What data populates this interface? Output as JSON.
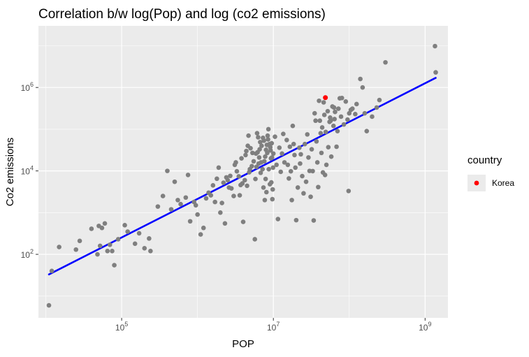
{
  "chart_data": {
    "type": "scatter",
    "title": "Correlation b/w log(Pop) and log (co2 emissions)",
    "xlabel": "POP",
    "ylabel": "Co2 emissions",
    "x_scale": "log10",
    "y_scale": "log10",
    "xlim": [
      8000,
      2000000000
    ],
    "ylim": [
      3,
      30000000
    ],
    "x_ticks": [
      {
        "value": 100000,
        "base": "10",
        "exp": "5"
      },
      {
        "value": 10000000,
        "base": "10",
        "exp": "7"
      },
      {
        "value": 1000000000,
        "base": "10",
        "exp": "9"
      }
    ],
    "y_ticks": [
      {
        "value": 100,
        "base": "10",
        "exp": "2"
      },
      {
        "value": 10000,
        "base": "10",
        "exp": "4"
      },
      {
        "value": 1000000,
        "base": "10",
        "exp": "6"
      }
    ],
    "grid": true,
    "legend": {
      "title": "country",
      "position": "right",
      "entries": [
        {
          "label": "Korea",
          "color": "#ff0000"
        }
      ]
    },
    "colors": {
      "points": "#7f7f7f",
      "highlight": "#ff0000",
      "trend": "#0000ff",
      "panel": "#ebebeb",
      "grid": "#ffffff"
    },
    "series": [
      {
        "values": [
          [
            11000,
            6
          ],
          [
            12000,
            40
          ],
          [
            15000,
            150
          ],
          [
            25000,
            130
          ],
          [
            28000,
            210
          ],
          [
            40000,
            410
          ],
          [
            50000,
            480
          ],
          [
            48000,
            100
          ],
          [
            55000,
            430
          ],
          [
            60000,
            550
          ],
          [
            52000,
            160
          ],
          [
            65000,
            120
          ],
          [
            70000,
            170
          ],
          [
            75000,
            120
          ],
          [
            80000,
            55
          ],
          [
            90000,
            230
          ],
          [
            110000,
            500
          ],
          [
            120000,
            350
          ],
          [
            150000,
            180
          ],
          [
            170000,
            320
          ],
          [
            200000,
            140
          ],
          [
            230000,
            240
          ],
          [
            240000,
            120
          ],
          [
            300000,
            1400
          ],
          [
            350000,
            2500
          ],
          [
            400000,
            10000
          ],
          [
            450000,
            1200
          ],
          [
            500000,
            5500
          ],
          [
            550000,
            2000
          ],
          [
            600000,
            1600
          ],
          [
            700000,
            2300
          ],
          [
            750000,
            8000
          ],
          [
            800000,
            620
          ],
          [
            900000,
            1800
          ],
          [
            950000,
            1500
          ],
          [
            1000000,
            900
          ],
          [
            1100000,
            300
          ],
          [
            1200000,
            430
          ],
          [
            1300000,
            2200
          ],
          [
            1400000,
            3000
          ],
          [
            1500000,
            2600
          ],
          [
            1600000,
            4500
          ],
          [
            1700000,
            1800
          ],
          [
            1800000,
            6500
          ],
          [
            1900000,
            12000
          ],
          [
            2000000,
            1000
          ],
          [
            2100000,
            1700
          ],
          [
            2200000,
            5200
          ],
          [
            2300000,
            550
          ],
          [
            2400000,
            7000
          ],
          [
            2500000,
            6000
          ],
          [
            2600000,
            4000
          ],
          [
            2700000,
            7600
          ],
          [
            2800000,
            3800
          ],
          [
            3000000,
            2500
          ],
          [
            3100000,
            14000
          ],
          [
            3200000,
            16000
          ],
          [
            3300000,
            9800
          ],
          [
            3500000,
            7400
          ],
          [
            3600000,
            2600
          ],
          [
            3700000,
            4600
          ],
          [
            3800000,
            20000
          ],
          [
            3900000,
            5000
          ],
          [
            4000000,
            600
          ],
          [
            4200000,
            6000
          ],
          [
            4300000,
            24000
          ],
          [
            4400000,
            30000
          ],
          [
            4500000,
            4400
          ],
          [
            4600000,
            40000
          ],
          [
            4700000,
            70000
          ],
          [
            4800000,
            9300
          ],
          [
            4900000,
            11000
          ],
          [
            5000000,
            35000
          ],
          [
            5200000,
            13000
          ],
          [
            5300000,
            27000
          ],
          [
            5500000,
            17000
          ],
          [
            5700000,
            230
          ],
          [
            5800000,
            6400
          ],
          [
            5900000,
            26000
          ],
          [
            6000000,
            12500
          ],
          [
            6100000,
            80000
          ],
          [
            6200000,
            28000
          ],
          [
            6300000,
            64000
          ],
          [
            6400000,
            15000
          ],
          [
            6500000,
            21000
          ],
          [
            6600000,
            33000
          ],
          [
            6700000,
            49000
          ],
          [
            6800000,
            9000
          ],
          [
            6900000,
            16000
          ],
          [
            7000000,
            40000
          ],
          [
            7200000,
            11000
          ],
          [
            7300000,
            62000
          ],
          [
            7400000,
            4000
          ],
          [
            7500000,
            53000
          ],
          [
            7600000,
            17000
          ],
          [
            7700000,
            2000
          ],
          [
            7800000,
            22000
          ],
          [
            7900000,
            6400
          ],
          [
            8000000,
            32000
          ],
          [
            8100000,
            3100
          ],
          [
            8200000,
            42000
          ],
          [
            8300000,
            27000
          ],
          [
            8400000,
            70000
          ],
          [
            8500000,
            57000
          ],
          [
            8600000,
            100000
          ],
          [
            8700000,
            11000
          ],
          [
            8900000,
            44000
          ],
          [
            9000000,
            4800
          ],
          [
            9100000,
            37000
          ],
          [
            9200000,
            31000
          ],
          [
            9300000,
            20000
          ],
          [
            9400000,
            5300
          ],
          [
            9500000,
            46000
          ],
          [
            9600000,
            21000
          ],
          [
            9700000,
            2100
          ],
          [
            9800000,
            3600
          ],
          [
            9900000,
            12000
          ],
          [
            10000000,
            26000
          ],
          [
            10500000,
            66000
          ],
          [
            11000000,
            14000
          ],
          [
            11500000,
            700
          ],
          [
            12000000,
            36000
          ],
          [
            12500000,
            9500
          ],
          [
            13000000,
            26000
          ],
          [
            13500000,
            77000
          ],
          [
            14000000,
            16000
          ],
          [
            15000000,
            55000
          ],
          [
            15500000,
            14000
          ],
          [
            16000000,
            6600
          ],
          [
            16500000,
            38000
          ],
          [
            17000000,
            9800
          ],
          [
            17500000,
            2000
          ],
          [
            18000000,
            120000
          ],
          [
            18500000,
            44000
          ],
          [
            19000000,
            24000
          ],
          [
            19500000,
            12000
          ],
          [
            20000000,
            660
          ],
          [
            21000000,
            4000
          ],
          [
            22000000,
            36000
          ],
          [
            22500000,
            15000
          ],
          [
            23000000,
            25000
          ],
          [
            24000000,
            7500
          ],
          [
            25000000,
            2900
          ],
          [
            26000000,
            44000
          ],
          [
            27000000,
            5500
          ],
          [
            28000000,
            75000
          ],
          [
            29000000,
            21000
          ],
          [
            30000000,
            10000
          ],
          [
            31000000,
            2400
          ],
          [
            32000000,
            33000
          ],
          [
            33000000,
            9900
          ],
          [
            34000000,
            650
          ],
          [
            35000000,
            240000
          ],
          [
            36000000,
            160000
          ],
          [
            37000000,
            51000
          ],
          [
            38000000,
            16000
          ],
          [
            39000000,
            4100
          ],
          [
            40000000,
            480000
          ],
          [
            41000000,
            160000
          ],
          [
            42000000,
            80000
          ],
          [
            43000000,
            27000
          ],
          [
            44000000,
            110000
          ],
          [
            45000000,
            9200
          ],
          [
            46000000,
            440000
          ],
          [
            47000000,
            220000
          ],
          [
            48000000,
            8000
          ],
          [
            49000000,
            86000
          ],
          [
            50000000,
            14000
          ],
          [
            52000000,
            270000
          ],
          [
            53000000,
            37000
          ],
          [
            55000000,
            150000
          ],
          [
            56000000,
            190000
          ],
          [
            57000000,
            160000
          ],
          [
            58000000,
            22000
          ],
          [
            60000000,
            350000
          ],
          [
            62000000,
            120000
          ],
          [
            63000000,
            330000
          ],
          [
            64000000,
            175000
          ],
          [
            65000000,
            260000
          ],
          [
            68000000,
            38000
          ],
          [
            70000000,
            90000
          ],
          [
            72000000,
            310000
          ],
          [
            75000000,
            550000
          ],
          [
            78000000,
            200000
          ],
          [
            80000000,
            560000
          ],
          [
            85000000,
            130000
          ],
          [
            90000000,
            460000
          ],
          [
            95000000,
            170000
          ],
          [
            98000000,
            3300
          ],
          [
            100000000,
            240000
          ],
          [
            105000000,
            290000
          ],
          [
            110000000,
            310000
          ],
          [
            120000000,
            230000
          ],
          [
            125000000,
            400000
          ],
          [
            140000000,
            1600000
          ],
          [
            150000000,
            1000000
          ],
          [
            160000000,
            240000
          ],
          [
            170000000,
            90000
          ],
          [
            200000000,
            200000
          ],
          [
            230000000,
            330000
          ],
          [
            250000000,
            500000
          ],
          [
            300000000,
            4000000
          ],
          [
            1350000000,
            9800000
          ],
          [
            1380000000,
            2300000
          ]
        ]
      },
      {
        "name": "Korea",
        "values": [
          [
            48500000,
            570000
          ]
        ]
      }
    ],
    "trend_line": {
      "from": [
        11000,
        33
      ],
      "to": [
        1380000000,
        1700000
      ]
    }
  }
}
